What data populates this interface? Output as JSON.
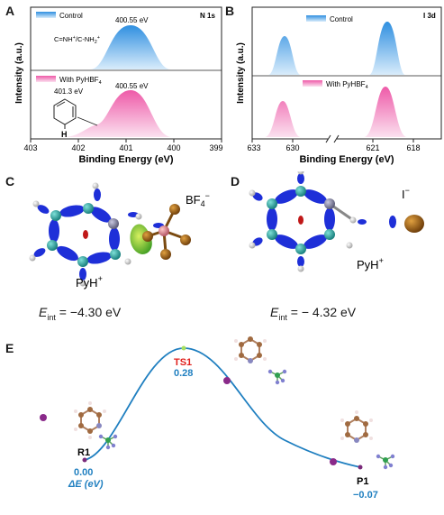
{
  "panel_a": {
    "letter": "A",
    "tag": "N 1s",
    "legend_top": "Control",
    "legend_bottom": "With PyHBF",
    "legend_bottom_sub": "4",
    "peak_top_label": "400.55 eV",
    "peak_bottom_label": "400.55 eV",
    "shoulder_label": "401.3 eV",
    "species_label": "C=NH",
    "species_sup1": "+",
    "species_mid": "/C-NH",
    "species_sub": "2",
    "species_sup2": "+",
    "pyridine_h": "H",
    "ylabel": "Intensity (a.u.)",
    "xlabel": "Binding Energy (eV)",
    "ticks": [
      "403",
      "402",
      "401",
      "400",
      "399"
    ],
    "top_color": "#3a9ee8",
    "bottom_color": "#f06fb6"
  },
  "panel_b": {
    "letter": "B",
    "tag": "I 3d",
    "legend_top": "Control",
    "legend_bottom": "With PyHBF",
    "legend_bottom_sub": "4",
    "ylabel": "Intensity (a.u.)",
    "xlabel": "Binding Energy (eV)",
    "ticks": [
      "633",
      "630",
      "621",
      "618"
    ]
  },
  "panel_c": {
    "letter": "C",
    "anion": "BF",
    "anion_sub": "4",
    "anion_sup": "−",
    "cation": "PyH",
    "cation_sup": "+",
    "eint_label": "E",
    "eint_sub": "int",
    "eint_value": " = −4.30 eV"
  },
  "panel_d": {
    "letter": "D",
    "anion": "I",
    "anion_sup": "−",
    "cation": "PyH",
    "cation_sup": "+",
    "eint_label": "E",
    "eint_sub": "int",
    "eint_value": " = − 4.32 eV"
  },
  "panel_e": {
    "letter": "E",
    "r1_label": "R1",
    "r1_value": "0.00",
    "delta_label": "ΔE (eV)",
    "ts1_label": "TS1",
    "ts1_value": "0.28",
    "p1_label": "P1",
    "p1_value": "−0.07",
    "curve_color": "#1f7fc0",
    "ts_color": "#e0201c",
    "value_color": "#1f7fc0"
  }
}
